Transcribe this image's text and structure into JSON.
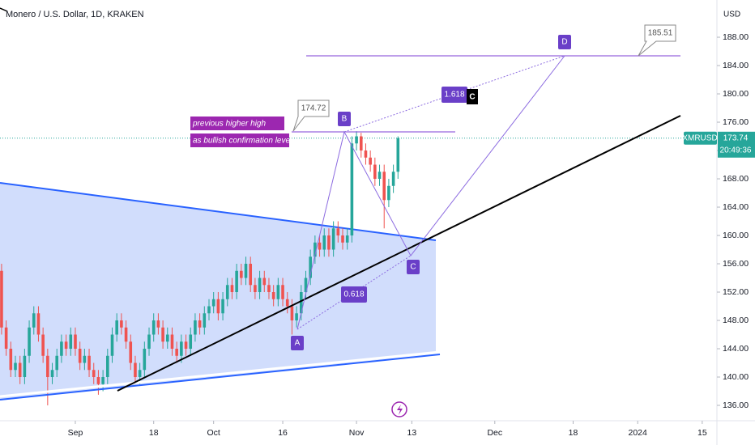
{
  "chart_data": {
    "type": "candlestick",
    "title": "Monero / U.S. Dollar, 1D, KRAKEN",
    "currency": "USD",
    "symbol": "XMRUSD",
    "last_price": 173.74,
    "countdown": "20:49:36",
    "up_color": "#26a69a",
    "down_color": "#ef5350",
    "x": [
      -16,
      -15,
      -14,
      -13,
      -12,
      -11,
      -10,
      -9,
      -8,
      -7,
      -6,
      -5,
      -4,
      -3,
      -2,
      -1,
      0,
      1,
      2,
      3,
      4,
      5,
      6,
      7,
      8,
      9,
      10,
      11,
      12,
      13,
      14,
      15,
      16,
      17,
      18,
      19,
      20,
      21,
      22,
      23,
      24,
      25,
      26,
      27,
      28,
      29,
      30,
      31,
      32,
      33,
      34,
      35,
      36,
      37,
      38,
      39,
      40,
      41,
      42,
      43,
      44,
      45,
      46,
      47,
      48,
      49,
      50,
      51,
      52,
      53,
      54,
      55,
      56,
      57,
      58,
      59,
      60,
      61,
      62,
      63,
      64,
      65,
      66,
      67,
      68,
      69,
      70
    ],
    "open": [
      155,
      147,
      144,
      141,
      142,
      140,
      143,
      147,
      149,
      146,
      143,
      140,
      141,
      143,
      145,
      144,
      146,
      144,
      142,
      143,
      141,
      140,
      139,
      140,
      143,
      146,
      148,
      147,
      145,
      142,
      140,
      141,
      144,
      146,
      148,
      147,
      145,
      146,
      144,
      143,
      145,
      144,
      146,
      148,
      147,
      149,
      150,
      151,
      149,
      151,
      153,
      152,
      155,
      154,
      156,
      153,
      152,
      154,
      153,
      152,
      151,
      153,
      151,
      150,
      148,
      149,
      152,
      154,
      157,
      159,
      158,
      160,
      158,
      161,
      160,
      159,
      160,
      173,
      174,
      172,
      171,
      170,
      168,
      169,
      165,
      167,
      169
    ],
    "high": [
      156,
      148,
      145,
      143,
      143,
      144,
      148,
      150,
      150,
      147,
      144,
      142,
      144,
      146,
      146,
      147,
      147,
      145,
      144,
      144,
      142,
      141,
      141,
      144,
      147,
      149,
      149,
      148,
      146,
      143,
      142,
      145,
      147,
      149,
      149,
      148,
      147,
      147,
      145,
      146,
      146,
      147,
      149,
      149,
      150,
      151,
      152,
      152,
      152,
      154,
      154,
      156,
      156,
      157,
      157,
      154,
      155,
      155,
      154,
      153,
      154,
      154,
      152,
      151,
      150,
      153,
      155,
      158,
      160,
      160,
      161,
      161,
      162,
      162,
      161,
      161,
      174,
      174.72,
      174.5,
      173,
      172,
      171,
      170,
      170,
      168,
      170,
      174
    ],
    "low": [
      146,
      143,
      140,
      140,
      139,
      139,
      142,
      146,
      145,
      142,
      136,
      139,
      140,
      142,
      143,
      143,
      143,
      141,
      141,
      140,
      139,
      137.5,
      138,
      139,
      142,
      145,
      146,
      144,
      141,
      139,
      139,
      140,
      143,
      145,
      146,
      144,
      144,
      143,
      142,
      142,
      143,
      143,
      145,
      146,
      146,
      148,
      149,
      148,
      148,
      150,
      151,
      151,
      153,
      153,
      152,
      151,
      151,
      152,
      151,
      150,
      150,
      150,
      149,
      146,
      147,
      148,
      151,
      153,
      156,
      157,
      157,
      157,
      157,
      159,
      158,
      158,
      159,
      172,
      171,
      170,
      169,
      167,
      167,
      161,
      164,
      166,
      168
    ],
    "close": [
      147,
      144,
      141,
      142,
      140,
      143,
      147,
      149,
      146,
      143,
      140,
      141,
      143,
      145,
      144,
      146,
      144,
      142,
      143,
      141,
      140,
      139,
      140,
      143,
      146,
      148,
      147,
      145,
      142,
      140,
      141,
      144,
      146,
      148,
      147,
      145,
      146,
      144,
      143,
      145,
      144,
      146,
      148,
      147,
      149,
      150,
      151,
      149,
      151,
      153,
      152,
      155,
      154,
      156,
      153,
      152,
      154,
      153,
      152,
      151,
      153,
      151,
      150,
      148,
      149,
      152,
      154,
      157,
      159,
      158,
      160,
      158,
      161,
      160,
      159,
      160,
      173,
      174,
      172,
      171,
      170,
      168,
      169,
      165,
      167,
      169,
      173.74
    ],
    "xlim": [
      -16.34,
      139.19
    ],
    "ylim": [
      133.83,
      193.26
    ],
    "xticks": [
      {
        "value": 0,
        "label": "Sep"
      },
      {
        "value": 17,
        "label": "18"
      },
      {
        "value": 30,
        "label": "Oct"
      },
      {
        "value": 45,
        "label": "16"
      },
      {
        "value": 61,
        "label": "Nov"
      },
      {
        "value": 73,
        "label": "13"
      },
      {
        "value": 91,
        "label": "Dec"
      },
      {
        "value": 108,
        "label": "18"
      },
      {
        "value": 122,
        "label": "2024"
      },
      {
        "value": 136,
        "label": "15"
      }
    ],
    "yticks": [
      {
        "value": 136,
        "label": "136.00"
      },
      {
        "value": 140,
        "label": "140.00"
      },
      {
        "value": 144,
        "label": "144.00"
      },
      {
        "value": 148,
        "label": "148.00"
      },
      {
        "value": 152,
        "label": "152.00"
      },
      {
        "value": 156,
        "label": "156.00"
      },
      {
        "value": 160,
        "label": "160.00"
      },
      {
        "value": 164,
        "label": "164.00"
      },
      {
        "value": 168,
        "label": "168.00"
      },
      {
        "value": 172,
        "label": "172.00"
      },
      {
        "value": 176,
        "label": "176.00"
      },
      {
        "value": 180,
        "label": "180.00"
      },
      {
        "value": 184,
        "label": "184.00"
      },
      {
        "value": 188,
        "label": "188.00"
      }
    ],
    "annotations": {
      "point_a": "A",
      "point_b": "B",
      "point_c": "C",
      "point_d": "D",
      "ext_ratio": "1.618",
      "ext_marker": "C",
      "retrace_ratio": "0.618",
      "b_price": "174.72",
      "d_price": "185.51",
      "note_line1": "previous higher high",
      "note_line2": "as bullish confirmation level"
    }
  }
}
